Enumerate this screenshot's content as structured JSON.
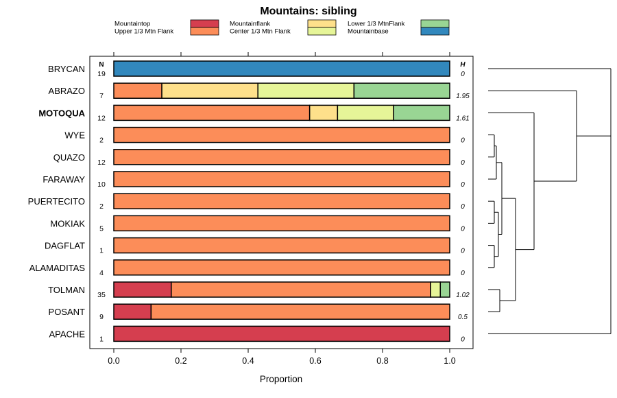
{
  "chart_data": {
    "type": "bar",
    "orientation": "horizontal",
    "stacked": true,
    "title": "Mountains: sibling",
    "xlabel": "Proportion",
    "ylabel": "",
    "xlim": [
      0,
      1
    ],
    "xticks": [
      "0.0",
      "0.2",
      "0.4",
      "0.6",
      "0.8",
      "1.0"
    ],
    "n_header": "N",
    "h_header": "H",
    "legend": [
      {
        "name": "Mountaintop",
        "color": "#d53e4f"
      },
      {
        "name": "Upper 1/3 Mtn Flank",
        "color": "#fc8d59"
      },
      {
        "name": "Mountainflank",
        "color": "#fee08b"
      },
      {
        "name": "Center 1/3 Mtn Flank",
        "color": "#e6f598"
      },
      {
        "name": "Lower 1/3 MtnFlank",
        "color": "#99d594"
      },
      {
        "name": "Mountainbase",
        "color": "#3288bd"
      }
    ],
    "rows": [
      {
        "label": "BRYCAN",
        "bold": false,
        "n": "19",
        "h": "0",
        "segments": [
          {
            "cat": "Mountainbase",
            "value": 1.0
          }
        ]
      },
      {
        "label": "ABRAZO",
        "bold": false,
        "n": "7",
        "h": "1.95",
        "segments": [
          {
            "cat": "Upper 1/3 Mtn Flank",
            "value": 0.143
          },
          {
            "cat": "Mountainflank",
            "value": 0.286
          },
          {
            "cat": "Center 1/3 Mtn Flank",
            "value": 0.286
          },
          {
            "cat": "Lower 1/3 MtnFlank",
            "value": 0.285
          }
        ]
      },
      {
        "label": "MOTOQUA",
        "bold": true,
        "n": "12",
        "h": "1.61",
        "segments": [
          {
            "cat": "Upper 1/3 Mtn Flank",
            "value": 0.583
          },
          {
            "cat": "Mountainflank",
            "value": 0.083
          },
          {
            "cat": "Center 1/3 Mtn Flank",
            "value": 0.167
          },
          {
            "cat": "Lower 1/3 MtnFlank",
            "value": 0.167
          }
        ]
      },
      {
        "label": "WYE",
        "bold": false,
        "n": "2",
        "h": "0",
        "segments": [
          {
            "cat": "Upper 1/3 Mtn Flank",
            "value": 1.0
          }
        ]
      },
      {
        "label": "QUAZO",
        "bold": false,
        "n": "12",
        "h": "0",
        "segments": [
          {
            "cat": "Upper 1/3 Mtn Flank",
            "value": 1.0
          }
        ]
      },
      {
        "label": "FARAWAY",
        "bold": false,
        "n": "10",
        "h": "0",
        "segments": [
          {
            "cat": "Upper 1/3 Mtn Flank",
            "value": 1.0
          }
        ]
      },
      {
        "label": "PUERTECITO",
        "bold": false,
        "n": "2",
        "h": "0",
        "segments": [
          {
            "cat": "Upper 1/3 Mtn Flank",
            "value": 1.0
          }
        ]
      },
      {
        "label": "MOKIAK",
        "bold": false,
        "n": "5",
        "h": "0",
        "segments": [
          {
            "cat": "Upper 1/3 Mtn Flank",
            "value": 1.0
          }
        ]
      },
      {
        "label": "DAGFLAT",
        "bold": false,
        "n": "1",
        "h": "0",
        "segments": [
          {
            "cat": "Upper 1/3 Mtn Flank",
            "value": 1.0
          }
        ]
      },
      {
        "label": "ALAMADITAS",
        "bold": false,
        "n": "4",
        "h": "0",
        "segments": [
          {
            "cat": "Upper 1/3 Mtn Flank",
            "value": 1.0
          }
        ]
      },
      {
        "label": "TOLMAN",
        "bold": false,
        "n": "35",
        "h": "1.02",
        "segments": [
          {
            "cat": "Mountaintop",
            "value": 0.171
          },
          {
            "cat": "Upper 1/3 Mtn Flank",
            "value": 0.772
          },
          {
            "cat": "Center 1/3 Mtn Flank",
            "value": 0.029
          },
          {
            "cat": "Lower 1/3 MtnFlank",
            "value": 0.028
          }
        ]
      },
      {
        "label": "POSANT",
        "bold": false,
        "n": "9",
        "h": "0.5",
        "segments": [
          {
            "cat": "Mountaintop",
            "value": 0.111
          },
          {
            "cat": "Upper 1/3 Mtn Flank",
            "value": 0.889
          }
        ]
      },
      {
        "label": "APACHE",
        "bold": false,
        "n": "1",
        "h": "0",
        "segments": [
          {
            "cat": "Mountaintop",
            "value": 1.0
          }
        ]
      }
    ]
  }
}
